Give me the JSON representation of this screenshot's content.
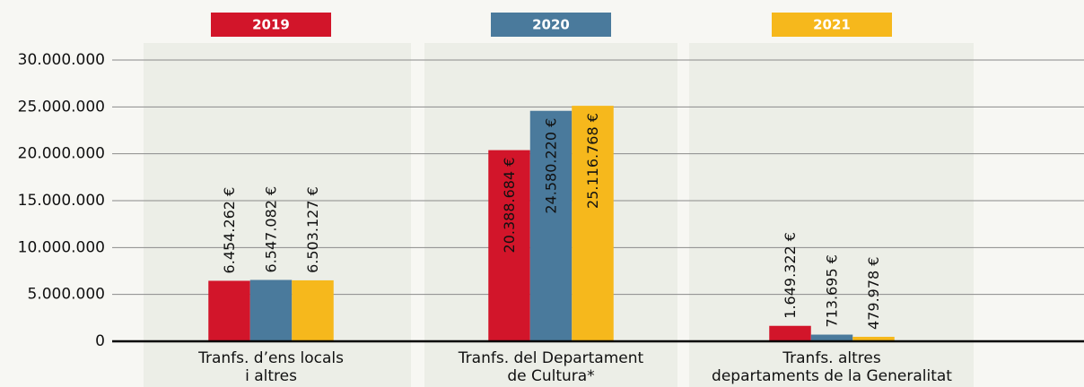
{
  "chart_data": {
    "type": "bar",
    "categories": [
      [
        "Tranfs. d’ens locals",
        "i altres"
      ],
      [
        "Tranfs. del Departament",
        "de Cultura*"
      ],
      [
        "Tranfs. altres",
        "departaments de la Generalitat"
      ]
    ],
    "series": [
      {
        "name": "2019",
        "color": "#d2152a",
        "values": [
          6454262,
          20388684,
          1649322
        ],
        "value_labels": [
          "6.454.262 €",
          "20.388.684 €",
          "1.649.322 €"
        ]
      },
      {
        "name": "2020",
        "color": "#4a7a9c",
        "values": [
          6547082,
          24580220,
          713695
        ],
        "value_labels": [
          "6.547.082 €",
          "24.580.220 €",
          "713.695 €"
        ]
      },
      {
        "name": "2021",
        "color": "#f6b81c",
        "values": [
          6503127,
          25116768,
          479978
        ],
        "value_labels": [
          "6.503.127 €",
          "25.116.768 €",
          "479.978 €"
        ]
      }
    ],
    "ylim": [
      0,
      30000000
    ],
    "yticks": [
      0,
      {
        "value": 5000000,
        "label": "5.000.000"
      },
      {
        "value": 10000000,
        "label": "10.000.000"
      },
      {
        "value": 15000000,
        "label": "15.000.000"
      },
      {
        "value": 20000000,
        "label": "20.000.000"
      },
      {
        "value": 25000000,
        "label": "25.000.000"
      },
      {
        "value": 30000000,
        "label": "30.000.000"
      }
    ],
    "grid": true
  }
}
